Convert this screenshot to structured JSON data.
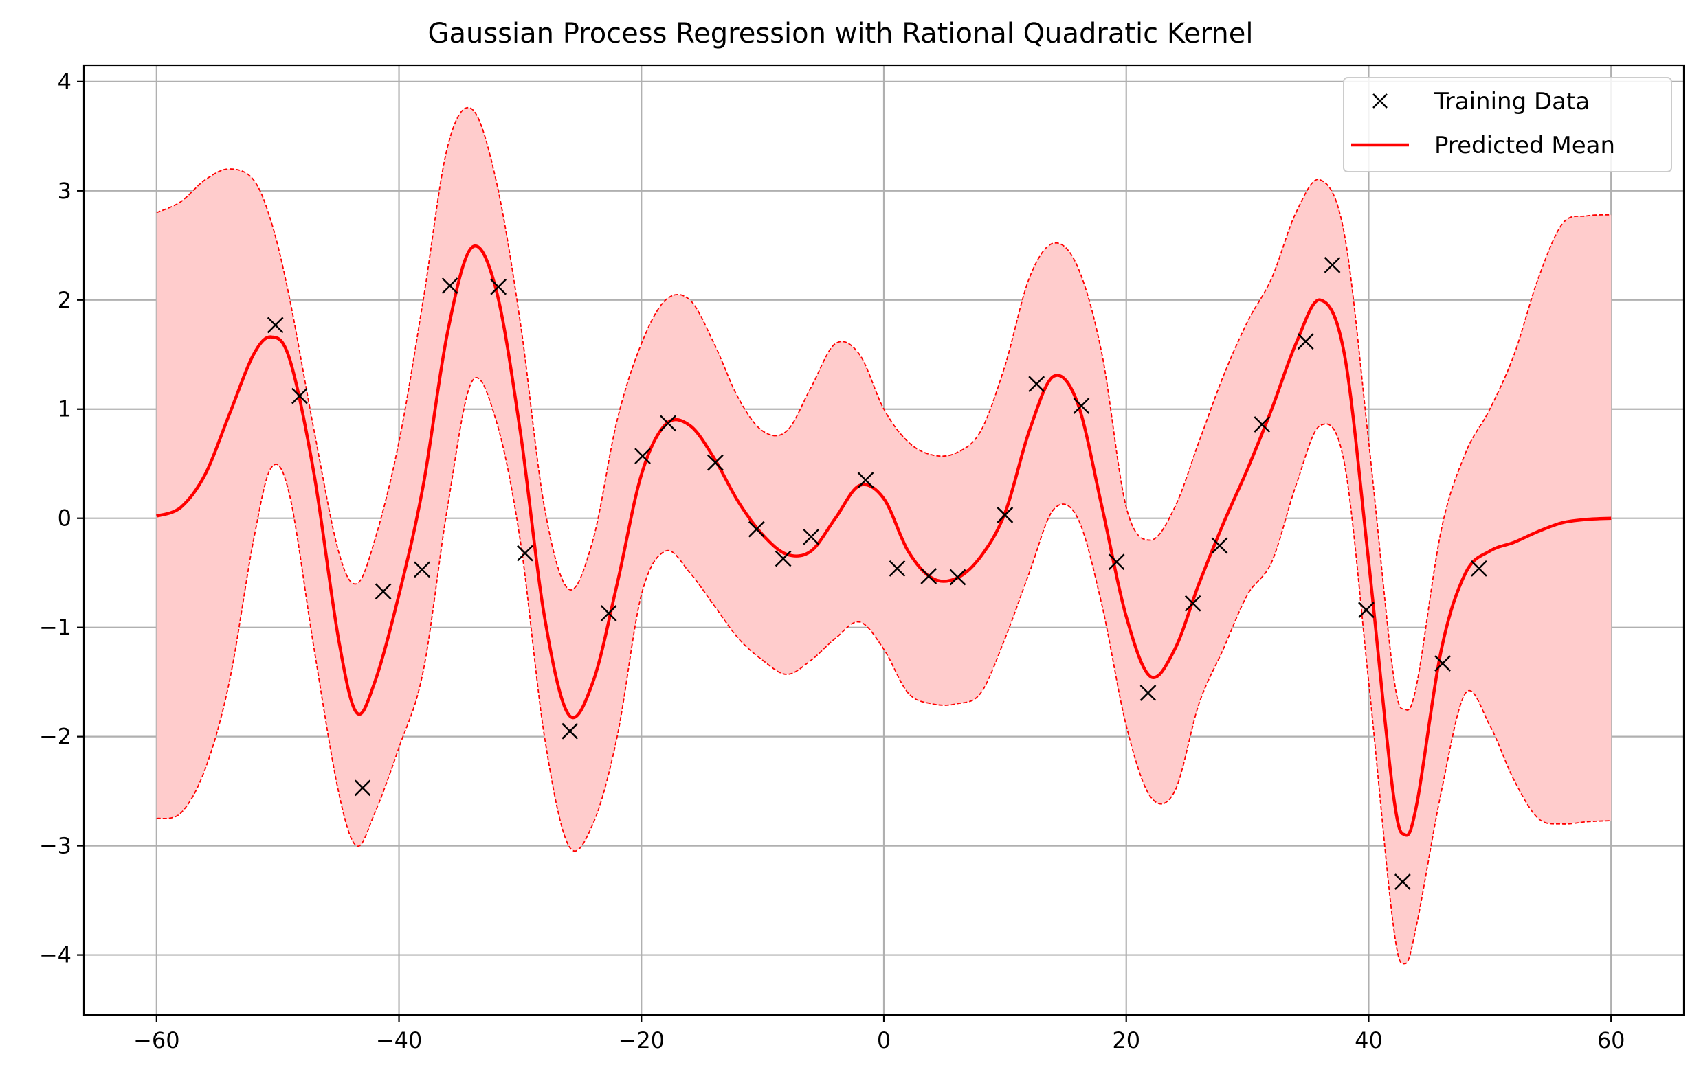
{
  "chart_data": {
    "type": "line",
    "title": "Gaussian Process Regression with Rational Quadratic Kernel",
    "xlabel": "",
    "ylabel": "",
    "xlim": [
      -66,
      66
    ],
    "ylim": [
      -4.55,
      4.15
    ],
    "xticks": [
      -60,
      -40,
      -20,
      0,
      20,
      40,
      60
    ],
    "xtick_labels": [
      "−60",
      "−40",
      "−20",
      "0",
      "20",
      "40",
      "60"
    ],
    "yticks": [
      -4,
      -3,
      -2,
      -1,
      0,
      1,
      2,
      3,
      4
    ],
    "ytick_labels": [
      "−4",
      "−3",
      "−2",
      "−1",
      "0",
      "1",
      "2",
      "3",
      "4"
    ],
    "grid": true,
    "legend": {
      "placement": "top-right",
      "entries": [
        "Training Data",
        "Predicted Mean"
      ]
    },
    "colors": {
      "mean": "#ff0000",
      "band_fill": "#ffcccc",
      "band_edge": "#ff0000",
      "points": "#000000",
      "grid": "#b0b0b0"
    },
    "training_data": {
      "name": "Training Data",
      "x": [
        -50.2,
        -48.2,
        -43.0,
        -41.3,
        -38.1,
        -35.8,
        -31.8,
        -29.6,
        -25.9,
        -22.7,
        -19.9,
        -17.8,
        -13.9,
        -10.5,
        -8.3,
        -6.0,
        -1.5,
        1.1,
        3.7,
        6.1,
        10.0,
        12.6,
        16.3,
        19.2,
        21.8,
        25.5,
        27.7,
        31.2,
        34.8,
        37.0,
        39.8,
        42.8,
        46.1,
        49.1
      ],
      "y": [
        1.77,
        1.12,
        -2.47,
        -0.67,
        -0.47,
        2.13,
        2.12,
        -0.32,
        -1.95,
        -0.87,
        0.57,
        0.87,
        0.51,
        -0.1,
        -0.37,
        -0.17,
        0.35,
        -0.46,
        -0.53,
        -0.54,
        0.03,
        1.23,
        1.03,
        -0.4,
        -1.6,
        -0.78,
        -0.25,
        0.86,
        1.62,
        2.32,
        -0.84,
        -3.33,
        -1.33,
        -0.46
      ]
    },
    "mean": {
      "name": "Predicted Mean",
      "x": [
        -60,
        -58,
        -56,
        -54,
        -52,
        -50.5,
        -49,
        -47,
        -45,
        -43.5,
        -42,
        -40,
        -38,
        -36,
        -34,
        -32,
        -30,
        -28,
        -26,
        -24,
        -22,
        -20,
        -18,
        -16,
        -14,
        -12,
        -10,
        -8,
        -6,
        -4,
        -2,
        0,
        2,
        4,
        6,
        8,
        10,
        12,
        14,
        16,
        18,
        20,
        22,
        24,
        26,
        28,
        30,
        32,
        34,
        36,
        38,
        40,
        42,
        43,
        44,
        46,
        48,
        50,
        52,
        54,
        56,
        58,
        60
      ],
      "y": [
        0.02,
        0.1,
        0.4,
        0.95,
        1.5,
        1.66,
        1.45,
        0.4,
        -1.1,
        -1.78,
        -1.5,
        -0.7,
        0.3,
        1.7,
        2.48,
        2.1,
        0.8,
        -0.9,
        -1.8,
        -1.5,
        -0.6,
        0.4,
        0.86,
        0.85,
        0.55,
        0.15,
        -0.15,
        -0.33,
        -0.3,
        0.0,
        0.3,
        0.18,
        -0.3,
        -0.55,
        -0.55,
        -0.35,
        0.05,
        0.8,
        1.3,
        1.05,
        0.1,
        -0.9,
        -1.45,
        -1.2,
        -0.6,
        -0.05,
        0.45,
        1.0,
        1.6,
        2.0,
        1.5,
        -0.4,
        -2.5,
        -2.9,
        -2.6,
        -1.2,
        -0.5,
        -0.3,
        -0.22,
        -0.12,
        -0.04,
        -0.01,
        0.0
      ]
    },
    "band": {
      "x": [
        -60,
        -58,
        -56,
        -54,
        -52,
        -50.5,
        -49,
        -47,
        -45,
        -43.5,
        -42,
        -40,
        -38,
        -36,
        -34,
        -32,
        -30,
        -28,
        -26,
        -24,
        -22,
        -20,
        -18,
        -16,
        -14,
        -12,
        -10,
        -8,
        -6,
        -4,
        -2,
        0,
        2,
        4,
        6,
        8,
        10,
        12,
        14,
        16,
        18,
        20,
        22,
        24,
        26,
        28,
        30,
        32,
        34,
        36,
        38,
        40,
        42,
        43,
        44,
        46,
        48,
        50,
        52,
        54,
        56,
        58,
        60
      ],
      "upper": [
        2.8,
        2.9,
        3.1,
        3.2,
        3.1,
        2.7,
        2.0,
        0.8,
        -0.3,
        -0.6,
        -0.2,
        0.7,
        2.0,
        3.4,
        3.75,
        3.1,
        1.8,
        0.1,
        -0.65,
        -0.2,
        0.9,
        1.6,
        2.0,
        2.0,
        1.6,
        1.1,
        0.8,
        0.8,
        1.2,
        1.6,
        1.5,
        1.0,
        0.7,
        0.58,
        0.6,
        0.8,
        1.4,
        2.2,
        2.52,
        2.3,
        1.5,
        0.1,
        -0.2,
        0.1,
        0.7,
        1.3,
        1.8,
        2.2,
        2.8,
        3.1,
        2.6,
        0.7,
        -1.4,
        -1.75,
        -1.5,
        -0.1,
        0.6,
        1.0,
        1.5,
        2.2,
        2.7,
        2.77,
        2.78
      ],
      "lower": [
        -2.75,
        -2.7,
        -2.3,
        -1.5,
        -0.2,
        0.47,
        0.2,
        -1.2,
        -2.5,
        -3.0,
        -2.7,
        -2.1,
        -1.4,
        0.1,
        1.25,
        0.9,
        -0.2,
        -2.0,
        -3.0,
        -2.8,
        -2.0,
        -0.7,
        -0.3,
        -0.5,
        -0.8,
        -1.1,
        -1.3,
        -1.43,
        -1.3,
        -1.1,
        -0.95,
        -1.2,
        -1.6,
        -1.7,
        -1.7,
        -1.6,
        -1.1,
        -0.5,
        0.08,
        0.0,
        -0.8,
        -1.9,
        -2.55,
        -2.5,
        -1.7,
        -1.2,
        -0.7,
        -0.4,
        0.3,
        0.85,
        0.5,
        -1.5,
        -3.7,
        -4.08,
        -3.7,
        -2.5,
        -1.6,
        -1.9,
        -2.4,
        -2.75,
        -2.8,
        -2.78,
        -2.77
      ]
    }
  }
}
